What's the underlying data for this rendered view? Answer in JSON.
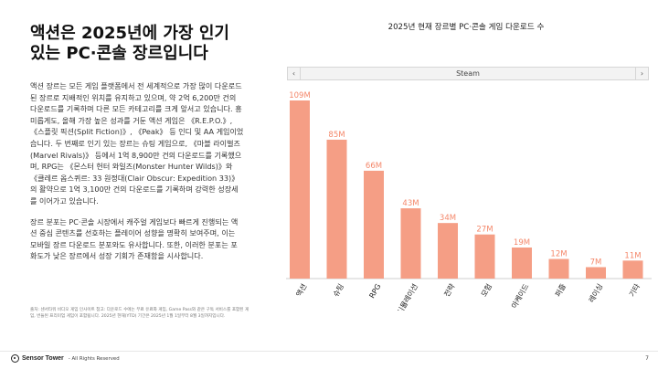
{
  "headline": {
    "line1": "액션은 2025년에 가장 인기",
    "line2": "있는 PC·콘솔 장르입니다"
  },
  "paragraphs": [
    "액션 장르는 모든 게임 플랫폼에서 전 세계적으로 가장 많이 다운로드된 장르로 지배적인 위치를 유지하고 있으며, 약 2억 6,200만 건의 다운로드를 기록하며 다른 모든 카테고리를 크게 앞서고 있습니다. 흥미롭게도, 올해 가장 높은 성과를 거둔 액션 게임은 《R.E.P.O.》, 《스플릿 픽션(Split Fiction)》, 《Peak》 등 인디 및 AA 게임이었습니다. 두 번째로 인기 있는 장르는 슈팅 게임으로, 《마블 라이벌즈(Marvel Rivals)》 등에서 1억 8,900만 건의 다운로드를 기록했으며, RPG는 《몬스터 헌터 와일즈(Monster Hunter Wilds)》와 《클레르 옵스퀴르: 33 원정대(Clair Obscur: Expedition 33)》의 활약으로 1억 3,100만 건의 다운로드를 기록하며 강력한 성장세를 이어가고 있습니다.",
    "장르 분포는 PC·콘솔 시장에서 캐주얼 게임보다 빠르게 진행되는 액션 중심 콘텐츠를 선호하는 플레이어 성향을 명확히 보여주며, 이는 모바일 장르 다운로드 분포와도 유사합니다. 또한, 이러한 분포는 포화도가 낮은 장르에서 성장 기회가 존재함을 시사합니다."
  ],
  "footnote": "출처: 센서타워 비디오 게임 인사이트\n참고: 다운로드 수에는 무료 유료화 게임, Game Pass와 같은 구독 서비스를 포함된 게임, 번들된 프리미엄 게임이 포함됩니다. 2025년 현재(YTD) 기간은 2025년 1월 1일부터 8월 3일까지입니다.",
  "footer": {
    "brand": "Sensor Tower",
    "rights": "- All Rights Reserved",
    "page_number": "7"
  },
  "filter": {
    "selected": "Steam",
    "prev_symbol": "‹",
    "next_symbol": "›"
  },
  "colors": {
    "bar": "#F59E85",
    "label": "#F4876A",
    "axis": "#cfcfcf"
  },
  "chart_data": {
    "type": "bar",
    "title": "2025년 현재 장르별 PC·콘솔 게임 다운로드 수",
    "categories": [
      "액션",
      "슈팅",
      "RPG",
      "시뮬레이션",
      "전략",
      "모험",
      "아케이드",
      "퍼즐",
      "레이싱",
      "기타"
    ],
    "values": [
      109,
      85,
      66,
      43,
      34,
      27,
      19,
      12,
      7,
      11
    ],
    "value_labels": [
      "109M",
      "85M",
      "66M",
      "43M",
      "34M",
      "27M",
      "19M",
      "12M",
      "7M",
      "11M"
    ],
    "ylim": [
      0,
      120
    ],
    "grid": false,
    "legend": "none"
  }
}
